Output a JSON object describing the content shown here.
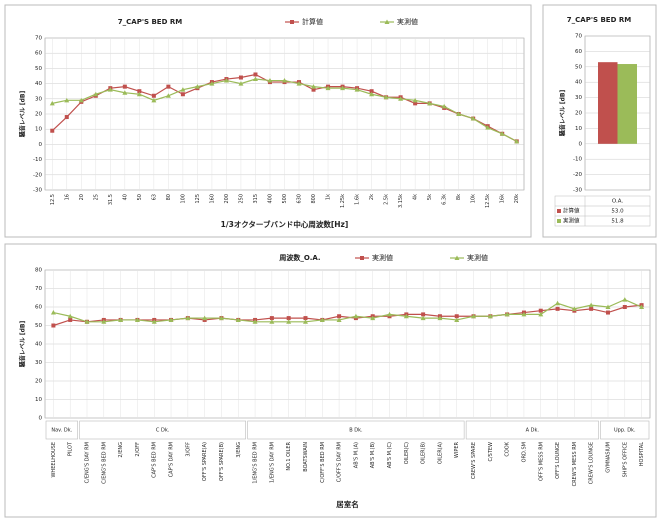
{
  "chart_data": [
    {
      "type": "line",
      "title": "7_CAP'S BED RM",
      "x_label": "1/3オクターブバンド中心周波数[Hz]",
      "y_label": "騒音レベル [dB]",
      "categories": [
        "12.5",
        "16",
        "20",
        "25",
        "31.5",
        "40",
        "50",
        "63",
        "80",
        "100",
        "125",
        "160",
        "200",
        "250",
        "315",
        "400",
        "500",
        "630",
        "800",
        "1k",
        "1.25k",
        "1.6k",
        "2k",
        "2.5k",
        "3.15k",
        "4k",
        "5k",
        "6.3k",
        "8k",
        "10k",
        "12.5k",
        "16k",
        "20k"
      ],
      "series": [
        {
          "name": "計算値",
          "color": "#c0504d",
          "marker": "square",
          "values": [
            9,
            18,
            28,
            32,
            37,
            38,
            35,
            32,
            38,
            33,
            37,
            41,
            43,
            44,
            46,
            41,
            41,
            41,
            36,
            38,
            38,
            37,
            35,
            31,
            31,
            27,
            27,
            24,
            20,
            17,
            12,
            7,
            2
          ]
        },
        {
          "name": "実測値",
          "color": "#9bbb59",
          "marker": "triangle",
          "values": [
            27,
            29,
            29,
            33,
            36,
            34,
            33,
            29,
            32,
            36,
            38,
            40,
            42,
            40,
            43,
            42,
            42,
            40,
            38,
            37,
            37,
            36,
            33,
            31,
            30,
            29,
            27,
            25,
            20,
            17,
            11,
            7,
            2
          ]
        }
      ],
      "ylim": [
        -30,
        70
      ],
      "yticks": [
        -30,
        -20,
        -10,
        0,
        10,
        20,
        30,
        40,
        50,
        60,
        70
      ],
      "grid": true,
      "legend": "top"
    },
    {
      "type": "bar",
      "title": "7_CAP'S BED RM",
      "y_label": "騒音レベル [dB]",
      "categories": [
        "O.A."
      ],
      "series": [
        {
          "name": "計算値",
          "color": "#c0504d",
          "values": [
            53.0
          ],
          "value_labels": [
            "53.0"
          ]
        },
        {
          "name": "実測値",
          "color": "#9bbb59",
          "values": [
            51.8
          ],
          "value_labels": [
            "51.8"
          ]
        }
      ],
      "ylim": [
        -30,
        70
      ],
      "yticks": [
        -30,
        -20,
        -10,
        0,
        10,
        20,
        30,
        40,
        50,
        60,
        70
      ],
      "grid": true,
      "legend": "table"
    },
    {
      "type": "line",
      "title": "周波数_O.A.",
      "x_label": "居室名",
      "y_label": "騒音レベル [dB]",
      "categories": [
        "WHEELHOUSE",
        "PILOT",
        "C/ENG'S DAY RM",
        "C/ENG'S BED RM",
        "2/ENG",
        "2/OFF",
        "CAP'S BED RM",
        "CAP'S DAY RM",
        "3/OFF",
        "OFF'S SPARE(A)",
        "OFF'S SPARE(B)",
        "3/ENG",
        "1/ENG'S BED RM",
        "1/ENG'S DAY RM",
        "NO.1 OILER",
        "BOATSWAIN",
        "C/OFF'S BED RM",
        "C/OFF'S DAY RM",
        "AB'S M.(A)",
        "AB'S M.(B)",
        "AB'S M.(C)",
        "OILER(C)",
        "OILER(B)",
        "OILER(A)",
        "WIPER",
        "CREW'S SPARE",
        "C/STEW",
        "COOK",
        "ORD.SM",
        "OFF'S MESS RM",
        "OFF'S LOUNGE",
        "CREW'S MESS RM",
        "CREW'S LOUNGE",
        "GYMNASIUM",
        "SHIP'S OFFICE",
        "HOSPITAL"
      ],
      "decks": [
        {
          "label": "Nav. Dk.",
          "span": 2
        },
        {
          "label": "C Dk.",
          "span": 10
        },
        {
          "label": "B Dk.",
          "span": 13
        },
        {
          "label": "A Dk.",
          "span": 8
        },
        {
          "label": "Upp. Dk.",
          "span": 3
        }
      ],
      "series": [
        {
          "name": "実測値",
          "color": "#c0504d",
          "marker": "square",
          "values": [
            50,
            53,
            52,
            53,
            53,
            53,
            53,
            53,
            54,
            53,
            54,
            53,
            53,
            54,
            54,
            54,
            53,
            55,
            54,
            55,
            55,
            56,
            56,
            55,
            55,
            55,
            55,
            56,
            57,
            58,
            59,
            58,
            59,
            57,
            60,
            61
          ]
        },
        {
          "name": "実測値",
          "color": "#9bbb59",
          "marker": "triangle",
          "values": [
            57,
            55,
            52,
            52,
            53,
            53,
            52,
            53,
            54,
            54,
            54,
            53,
            52,
            52,
            52,
            52,
            53,
            53,
            55,
            54,
            56,
            55,
            54,
            54,
            53,
            55,
            55,
            56,
            56,
            56,
            62,
            59,
            61,
            60,
            64,
            60
          ]
        }
      ],
      "ylim": [
        0,
        80
      ],
      "yticks": [
        0,
        10,
        20,
        30,
        40,
        50,
        60,
        70,
        80
      ],
      "grid": true,
      "legend": "top"
    }
  ]
}
